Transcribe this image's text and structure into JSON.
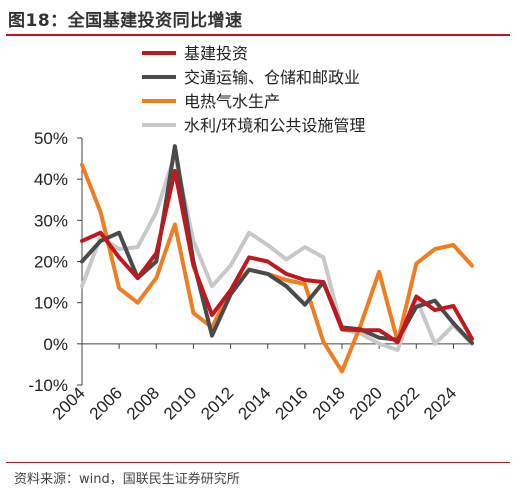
{
  "figure": {
    "title": "图18：全国基建投资同比增速",
    "source": "资料来源：wind，国联民生证券研究所"
  },
  "chart_data": {
    "type": "line",
    "x": [
      2004,
      2005,
      2006,
      2007,
      2008,
      2009,
      2010,
      2011,
      2012,
      2013,
      2014,
      2015,
      2016,
      2017,
      2018,
      2019,
      2020,
      2021,
      2022,
      2023,
      2024,
      2025
    ],
    "xticks": [
      "2004",
      "2006",
      "2008",
      "2010",
      "2012",
      "2014",
      "2016",
      "2018",
      "2020",
      "2022",
      "2024"
    ],
    "yticks": [
      "50%",
      "40%",
      "30%",
      "20%",
      "10%",
      "0%",
      "-10%"
    ],
    "ylim": [
      -10,
      50
    ],
    "grid": false,
    "legend_position": "top",
    "series": [
      {
        "name": "基建投资",
        "color": "#c0181f",
        "values": [
          25,
          27,
          21,
          16,
          22,
          42,
          19,
          7,
          13,
          21,
          20,
          17,
          15.5,
          15,
          3.5,
          3.3,
          3.3,
          0.4,
          11.5,
          8.2,
          9.2,
          1.2
        ]
      },
      {
        "name": "交通运输、仓储和邮政业",
        "color": "#4a4a4a",
        "values": [
          20,
          25,
          27,
          16,
          20,
          48,
          20,
          2,
          12,
          18,
          17,
          14,
          9.5,
          15,
          4,
          3.5,
          1.5,
          1,
          9,
          10.5,
          5,
          0.2
        ]
      },
      {
        "name": "电热气水生产",
        "color": "#ef7d22",
        "values": [
          43.5,
          32,
          13.5,
          10,
          16,
          29,
          7.5,
          4,
          13,
          18,
          17,
          15.5,
          14.5,
          0.5,
          -6.7,
          4.5,
          17.5,
          0.5,
          19.5,
          23,
          24,
          19
        ]
      },
      {
        "name": "水利/环境和公共设施管理",
        "color": "#c8c8c8",
        "values": [
          14,
          26,
          23,
          23.5,
          32,
          46,
          25,
          14,
          19,
          27,
          24,
          20.5,
          23.5,
          21,
          3.5,
          2.5,
          0,
          -1.5,
          11,
          0,
          4.5,
          0
        ]
      }
    ]
  }
}
